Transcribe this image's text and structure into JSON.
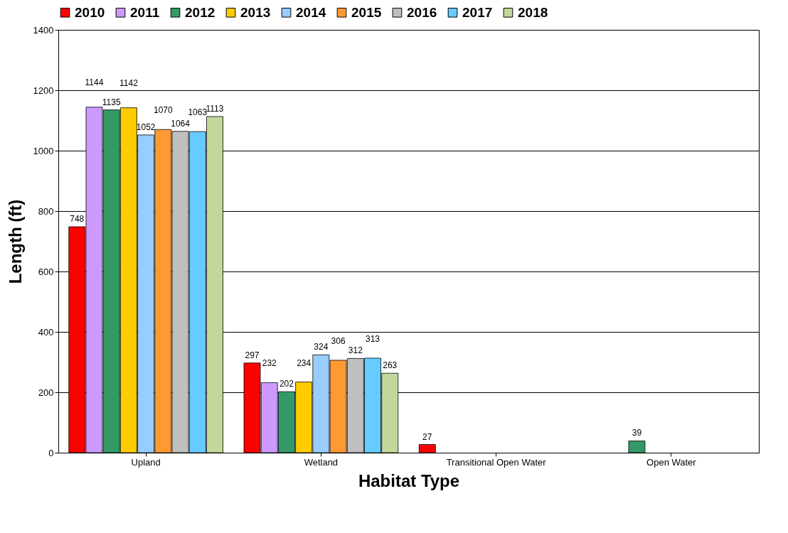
{
  "chart_data": {
    "type": "bar",
    "xlabel": "Habitat Type",
    "ylabel": "Length (ft)",
    "categories": [
      "Upland",
      "Wetland",
      "Transitional Open Water",
      "Open Water"
    ],
    "series": [
      {
        "name": "2010",
        "color": "#ff0000",
        "values": [
          748,
          297,
          27,
          null
        ]
      },
      {
        "name": "2011",
        "color": "#cc99ff",
        "values": [
          1144,
          232,
          null,
          null
        ]
      },
      {
        "name": "2012",
        "color": "#339966",
        "values": [
          1135,
          202,
          null,
          39
        ]
      },
      {
        "name": "2013",
        "color": "#ffcc00",
        "values": [
          1142,
          234,
          null,
          null
        ]
      },
      {
        "name": "2014",
        "color": "#99ccff",
        "values": [
          1052,
          324,
          null,
          null
        ]
      },
      {
        "name": "2015",
        "color": "#ff9933",
        "values": [
          1070,
          306,
          null,
          null
        ]
      },
      {
        "name": "2016",
        "color": "#bfbfbf",
        "values": [
          1064,
          312,
          null,
          null
        ]
      },
      {
        "name": "2017",
        "color": "#66ccff",
        "values": [
          1063,
          313,
          null,
          null
        ]
      },
      {
        "name": "2018",
        "color": "#c4d79b",
        "values": [
          1113,
          263,
          null,
          null
        ]
      }
    ],
    "ylim": [
      0,
      1400
    ],
    "yticks": [
      0,
      200,
      400,
      600,
      800,
      1000,
      1200,
      1400
    ],
    "grid": "y",
    "legend": "top",
    "data_labels": true
  }
}
